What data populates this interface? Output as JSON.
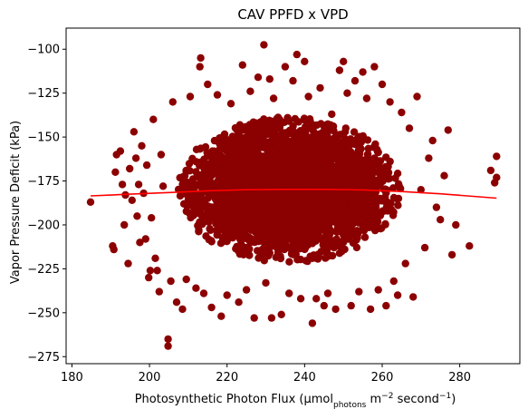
{
  "chart_data": {
    "type": "scatter",
    "title": "CAV PPFD x VPD",
    "xlabel": {
      "prefix": "Photosynthetic Photon Flux (μmol",
      "subscript": "photons",
      "middle": " m",
      "superscript1": "−2",
      "after": " second",
      "superscript2": "−1",
      "suffix": ")"
    },
    "ylabel": "Vapor Pressure Deficit (kPa)",
    "xlim": [
      178.5,
      295.5
    ],
    "ylim": [
      -279,
      -88
    ],
    "xticks": [
      180,
      200,
      220,
      240,
      260,
      280
    ],
    "yticks": [
      -100,
      -125,
      -150,
      -175,
      -200,
      -225,
      -250,
      -275
    ],
    "grid": false,
    "legend": false,
    "colors": {
      "points": "#8b0000",
      "fit": "#ff0000"
    },
    "cloud": {
      "center": [
        236,
        -180
      ],
      "spread": [
        12.5,
        18
      ],
      "count": 4000
    },
    "points": [
      [
        184.8,
        -187
      ],
      [
        190.5,
        -212
      ],
      [
        190.8,
        -214
      ],
      [
        191.2,
        -170
      ],
      [
        191.5,
        -160
      ],
      [
        192.5,
        -158
      ],
      [
        193,
        -177
      ],
      [
        193.5,
        -200
      ],
      [
        193.8,
        -183
      ],
      [
        194.5,
        -222
      ],
      [
        194.9,
        -168
      ],
      [
        195.5,
        -186
      ],
      [
        196,
        -147
      ],
      [
        196.5,
        -162
      ],
      [
        196.8,
        -195
      ],
      [
        197.2,
        -177
      ],
      [
        197.5,
        -210
      ],
      [
        198,
        -155
      ],
      [
        198.5,
        -182
      ],
      [
        199,
        -208
      ],
      [
        199.3,
        -166
      ],
      [
        199.8,
        -230
      ],
      [
        200.2,
        -226
      ],
      [
        200.5,
        -196
      ],
      [
        201,
        -140
      ],
      [
        201.5,
        -219
      ],
      [
        202,
        -226
      ],
      [
        202.5,
        -238
      ],
      [
        203,
        -160
      ],
      [
        203.5,
        -178
      ],
      [
        204.8,
        -265
      ],
      [
        204.8,
        -269
      ],
      [
        205.5,
        -232
      ],
      [
        206,
        -130
      ],
      [
        207,
        -244
      ],
      [
        208.5,
        -248
      ],
      [
        209.5,
        -231
      ],
      [
        210.5,
        -127
      ],
      [
        212,
        -236
      ],
      [
        213,
        -110
      ],
      [
        213.2,
        -105
      ],
      [
        214,
        -239
      ],
      [
        215,
        -120
      ],
      [
        216,
        -247
      ],
      [
        217.5,
        -126
      ],
      [
        218.5,
        -252
      ],
      [
        220,
        -240
      ],
      [
        221,
        -131
      ],
      [
        223,
        -244
      ],
      [
        224,
        -109
      ],
      [
        225,
        -237
      ],
      [
        226,
        -124
      ],
      [
        227,
        -253
      ],
      [
        228,
        -116
      ],
      [
        229.5,
        -97.5
      ],
      [
        230,
        -233
      ],
      [
        231,
        -117
      ],
      [
        232,
        -128
      ],
      [
        234,
        -251
      ],
      [
        235,
        -110
      ],
      [
        236,
        -239
      ],
      [
        237,
        -118
      ],
      [
        238,
        -103
      ],
      [
        239,
        -242
      ],
      [
        240,
        -107
      ],
      [
        241,
        -127
      ],
      [
        242,
        -256
      ],
      [
        243,
        -242
      ],
      [
        244,
        -122
      ],
      [
        245,
        -246
      ],
      [
        246,
        -239
      ],
      [
        247,
        -137
      ],
      [
        248,
        -248
      ],
      [
        249,
        -112
      ],
      [
        250,
        -107
      ],
      [
        251,
        -125
      ],
      [
        252,
        -246
      ],
      [
        253,
        -118
      ],
      [
        254,
        -238
      ],
      [
        255,
        -113
      ],
      [
        256,
        -128
      ],
      [
        257,
        -248
      ],
      [
        258,
        -110
      ],
      [
        259,
        -237
      ],
      [
        260,
        -120
      ],
      [
        261,
        -246
      ],
      [
        262,
        -130
      ],
      [
        263,
        -232
      ],
      [
        264,
        -240
      ],
      [
        265,
        -136
      ],
      [
        266,
        -222
      ],
      [
        267,
        -145
      ],
      [
        268,
        -241
      ],
      [
        269,
        -127
      ],
      [
        270,
        -180
      ],
      [
        271,
        -213
      ],
      [
        272,
        -162
      ],
      [
        273,
        -152
      ],
      [
        274,
        -190
      ],
      [
        275,
        -197
      ],
      [
        276,
        -172
      ],
      [
        277,
        -146
      ],
      [
        278,
        -217
      ],
      [
        279,
        -200
      ],
      [
        282.5,
        -212
      ],
      [
        288,
        -169
      ],
      [
        289,
        -176
      ],
      [
        289.5,
        -161
      ],
      [
        289.5,
        -173
      ],
      [
        231.5,
        -253
      ]
    ],
    "fit_line": {
      "x": [
        184.8,
        195,
        205,
        215,
        225,
        235,
        245,
        255,
        265,
        275,
        289.5
      ],
      "y": [
        -183.5,
        -182.5,
        -181.6,
        -180.6,
        -180,
        -179.8,
        -179.8,
        -180.1,
        -181,
        -182.3,
        -184.8
      ]
    }
  }
}
